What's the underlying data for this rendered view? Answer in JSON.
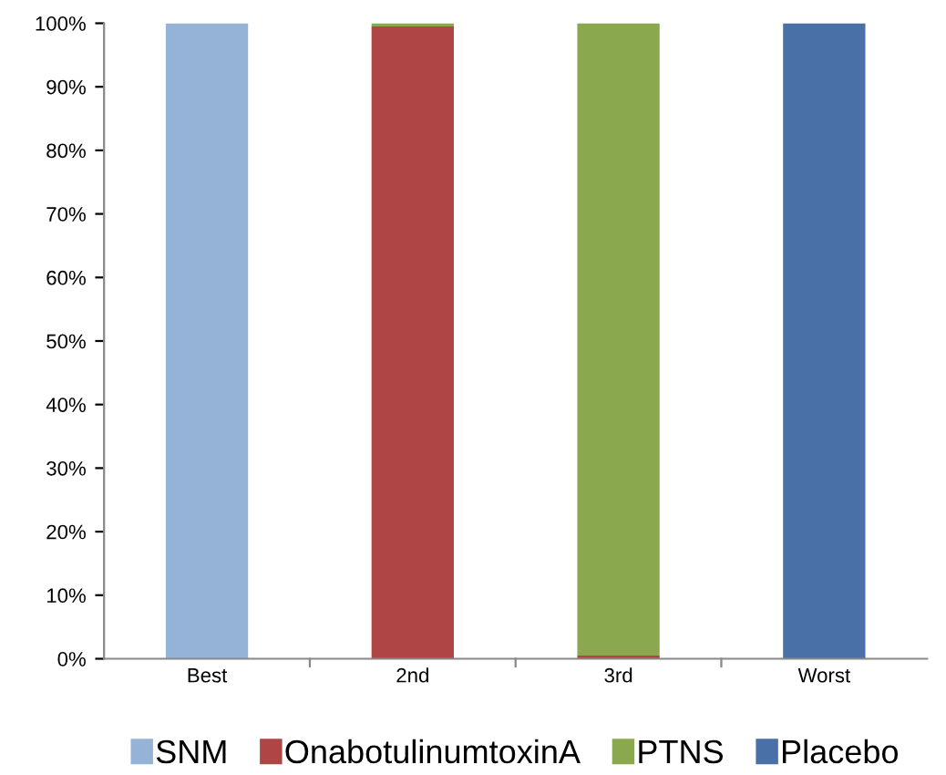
{
  "chart_data": {
    "type": "bar",
    "stacked": true,
    "categories": [
      "Best",
      "2nd",
      "3rd",
      "Worst"
    ],
    "series": [
      {
        "name": "SNM",
        "color": "#95b3d7",
        "values": [
          100,
          0,
          0,
          0
        ]
      },
      {
        "name": "OnabotulinumtoxinA",
        "color": "#b04545",
        "values": [
          0,
          99.5,
          0.5,
          0
        ]
      },
      {
        "name": "PTNS",
        "color": "#8aa84e",
        "values": [
          0,
          0.5,
          99.5,
          null
        ]
      },
      {
        "name": "Placebo",
        "color": "#4a70a8",
        "values": [
          0,
          0,
          0,
          100
        ]
      }
    ],
    "ylim": [
      0,
      100
    ],
    "yticks": [
      {
        "value": 0,
        "label": "0%"
      },
      {
        "value": 10,
        "label": "10%"
      },
      {
        "value": 20,
        "label": "20%"
      },
      {
        "value": 30,
        "label": "30%"
      },
      {
        "value": 40,
        "label": "40%"
      },
      {
        "value": 50,
        "label": "50%"
      },
      {
        "value": 60,
        "label": "60%"
      },
      {
        "value": 70,
        "label": "70%"
      },
      {
        "value": 80,
        "label": "80%"
      },
      {
        "value": 90,
        "label": "90%"
      },
      {
        "value": 100,
        "label": "100%"
      }
    ],
    "grid": false,
    "legend": "bottom"
  }
}
